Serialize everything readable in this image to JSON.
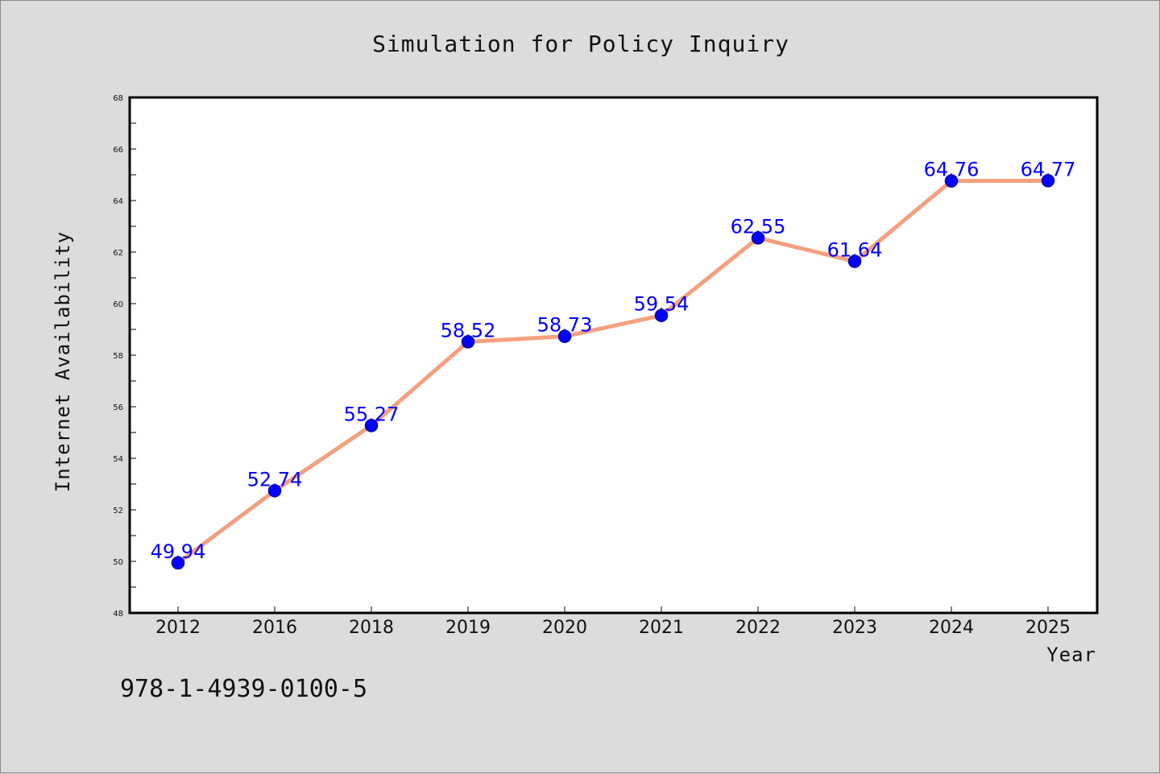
{
  "footer": {
    "code": "978-1-4939-0100-5"
  },
  "colors": {
    "line": "#f4a07e",
    "marker": "#0000ff",
    "marker_edge": "#0000aa",
    "label": "#0000ff",
    "plot_bg": "#ffffff",
    "page_bg": "#dcdcdc"
  },
  "chart_data": {
    "type": "line",
    "title": "Simulation for Policy Inquiry",
    "xlabel": "Year",
    "ylabel": "Internet Availability",
    "categories": [
      "2012",
      "2016",
      "2018",
      "2019",
      "2020",
      "2021",
      "2022",
      "2023",
      "2024",
      "2025"
    ],
    "series": [
      {
        "values": [
          49.94,
          52.74,
          55.27,
          58.52,
          58.73,
          59.54,
          62.55,
          61.64,
          64.76,
          64.77
        ]
      }
    ],
    "data_labels": [
      "49.94",
      "52.74",
      "55.27",
      "58.52",
      "58.73",
      "59.54",
      "62.55",
      "61.64",
      "64.76",
      "64.77"
    ],
    "ylim": [
      48,
      68
    ],
    "yticks": [
      48,
      50,
      52,
      54,
      56,
      58,
      60,
      62,
      64,
      66,
      68
    ],
    "grid": false,
    "legend": "none"
  }
}
